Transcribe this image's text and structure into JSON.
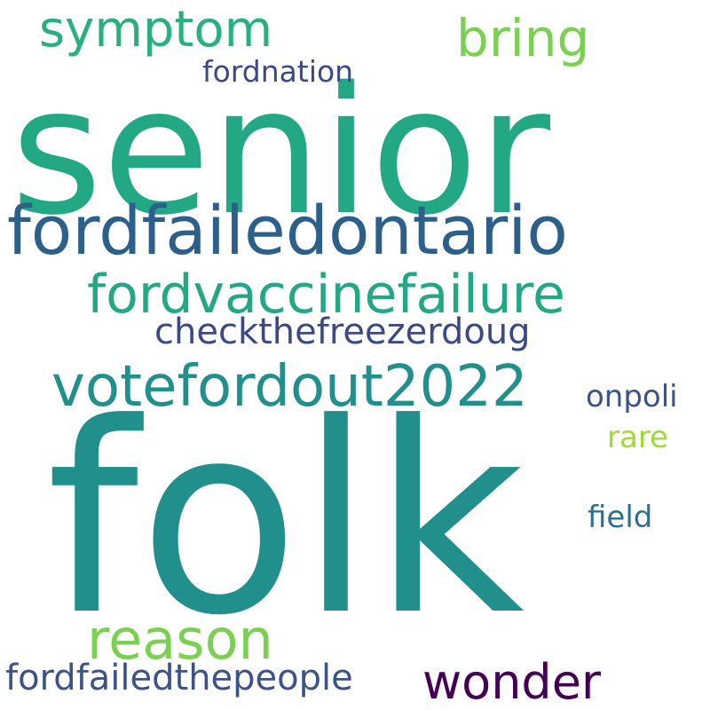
{
  "words": [
    {
      "text": "senior",
      "color": "#22a884"
    },
    {
      "text": "folk",
      "color": "#21908d"
    },
    {
      "text": "fordfailedontario",
      "color": "#2c5f8a"
    },
    {
      "text": "fordvaccinefailure",
      "color": "#22a884"
    },
    {
      "text": "votefordout2022",
      "color": "#21908d"
    },
    {
      "text": "symptom",
      "color": "#2ab07f"
    },
    {
      "text": "bring",
      "color": "#7ad151"
    },
    {
      "text": "reason",
      "color": "#7ad151"
    },
    {
      "text": "wonder",
      "color": "#440154"
    },
    {
      "text": "fordfailedthepeople",
      "color": "#3b528b"
    },
    {
      "text": "checkthefreezerdoug",
      "color": "#3b4a84"
    },
    {
      "text": "fordnation",
      "color": "#3b4a84"
    },
    {
      "text": "onpoli",
      "color": "#3b528b"
    },
    {
      "text": "rare",
      "color": "#a0da39"
    },
    {
      "text": "field",
      "color": "#2c6f8e"
    }
  ]
}
